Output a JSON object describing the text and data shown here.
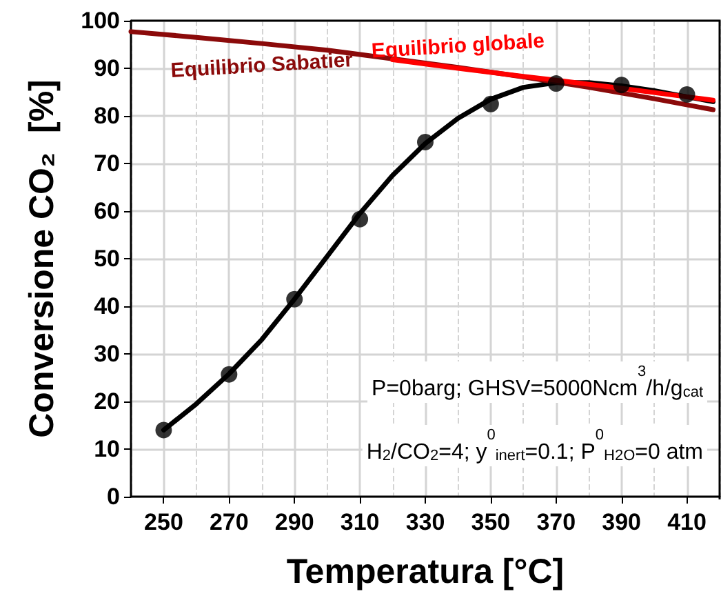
{
  "chart_data": {
    "type": "scatter",
    "xlabel": "Temperatura [°C]",
    "ylabel": "Conversione CO₂  [%]",
    "xlim": [
      240,
      420
    ],
    "xticks": [
      250,
      270,
      290,
      310,
      330,
      350,
      370,
      390,
      410
    ],
    "ylim": [
      0,
      100
    ],
    "yticks": [
      0,
      10,
      20,
      30,
      40,
      50,
      60,
      70,
      80,
      90,
      100
    ],
    "grid": true,
    "annotations": [
      "P=0barg; GHSV=5000Ncm$^{3}$/h/g$_{cat}$",
      "H$_{2}$/CO$_{2}$=4; y$^{0}$$_{inert}$=0.1; P$^{0}$$_{H2O}$=0 atm"
    ],
    "series": [
      {
        "marker": "circle",
        "color": "#000000",
        "x": [
          250,
          270,
          290,
          310,
          330,
          350,
          370,
          390,
          410
        ],
        "values": [
          14,
          25.7,
          41.5,
          58.3,
          74.5,
          82.5,
          86.8,
          86.5,
          84.5
        ]
      },
      {
        "type": "line",
        "marker": "none",
        "color": "#000000",
        "x": [
          250,
          260,
          270,
          280,
          290,
          300,
          310,
          320,
          330,
          340,
          350,
          360,
          370,
          380,
          390,
          400,
          410,
          418
        ],
        "values": [
          14,
          19.5,
          25.8,
          33,
          41.5,
          50.5,
          59.5,
          67.5,
          74.2,
          79.5,
          83.5,
          86,
          87,
          87,
          86.3,
          85.3,
          84,
          83
        ]
      },
      {
        "type": "line",
        "marker": "none",
        "name": "Equilibrio Sabatier",
        "color": "#8b0a0a",
        "x": [
          240,
          260,
          280,
          300,
          320,
          340,
          360,
          380,
          400,
          418
        ],
        "values": [
          97.7,
          96.5,
          95.2,
          93.8,
          92,
          90.2,
          88.2,
          86,
          83.6,
          81.3
        ]
      },
      {
        "type": "line",
        "marker": "none",
        "name": "Equilibrio globale",
        "color": "#ff0000",
        "x": [
          320,
          340,
          360,
          370,
          390,
          410,
          418
        ],
        "values": [
          91.8,
          90,
          88.3,
          87.5,
          85.8,
          84,
          83.3
        ]
      }
    ]
  }
}
